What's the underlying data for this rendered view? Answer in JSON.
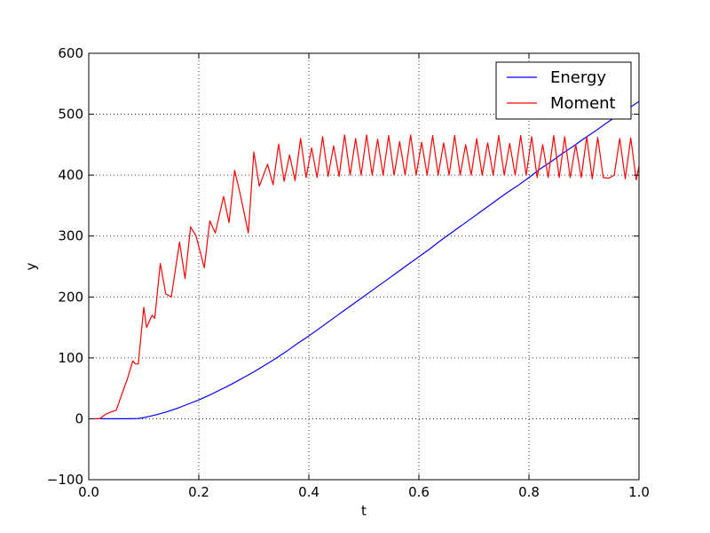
{
  "chart_data": {
    "type": "line",
    "title": "",
    "xlabel": "t",
    "ylabel": "y",
    "xlim": [
      0,
      1
    ],
    "ylim": [
      -100,
      600
    ],
    "xticks": [
      "0.0",
      "0.2",
      "0.4",
      "0.6",
      "0.8",
      "1.0"
    ],
    "yticks": [
      "−100",
      "0",
      "100",
      "200",
      "300",
      "400",
      "500",
      "600"
    ],
    "grid": true,
    "legend_position": "top-right",
    "series": [
      {
        "name": "Energy",
        "color": "#0000ff",
        "x": [
          0.01,
          0.03,
          0.05,
          0.07,
          0.09,
          0.1,
          0.12,
          0.14,
          0.16,
          0.18,
          0.2,
          0.22,
          0.24,
          0.26,
          0.28,
          0.3,
          0.32,
          0.34,
          0.36,
          0.38,
          0.4,
          0.42,
          0.44,
          0.46,
          0.48,
          0.5,
          0.52,
          0.54,
          0.56,
          0.58,
          0.6,
          0.62,
          0.64,
          0.66,
          0.68,
          0.7,
          0.72,
          0.74,
          0.76,
          0.78,
          0.8,
          0.82,
          0.84,
          0.86,
          0.88,
          0.9,
          0.92,
          0.94,
          0.96,
          0.98,
          1.0
        ],
        "y": [
          0,
          0,
          0,
          0,
          0.5,
          2,
          6,
          11,
          17,
          24,
          31,
          39,
          48,
          57,
          67,
          77,
          88,
          99,
          111,
          124,
          136,
          149,
          162,
          175,
          188,
          201,
          214,
          227,
          240,
          253,
          266,
          279,
          293,
          306,
          319,
          332,
          345,
          358,
          371,
          383,
          396,
          410,
          422,
          435,
          447,
          460,
          472,
          485,
          497,
          509,
          521
        ]
      },
      {
        "name": "Moment",
        "color": "#ff0000",
        "x": [
          0.01,
          0.02,
          0.03,
          0.04,
          0.05,
          0.06,
          0.07,
          0.08,
          0.085,
          0.09,
          0.1,
          0.105,
          0.115,
          0.12,
          0.13,
          0.14,
          0.15,
          0.165,
          0.175,
          0.185,
          0.195,
          0.21,
          0.22,
          0.23,
          0.245,
          0.255,
          0.265,
          0.275,
          0.29,
          0.3,
          0.31,
          0.325,
          0.335,
          0.345,
          0.355,
          0.365,
          0.375,
          0.385,
          0.395,
          0.405,
          0.415,
          0.425,
          0.435,
          0.445,
          0.455,
          0.465,
          0.475,
          0.485,
          0.495,
          0.505,
          0.515,
          0.525,
          0.535,
          0.545,
          0.555,
          0.565,
          0.575,
          0.585,
          0.595,
          0.605,
          0.615,
          0.625,
          0.635,
          0.645,
          0.655,
          0.665,
          0.675,
          0.685,
          0.695,
          0.705,
          0.715,
          0.725,
          0.735,
          0.745,
          0.755,
          0.765,
          0.775,
          0.785,
          0.795,
          0.805,
          0.815,
          0.825,
          0.835,
          0.845,
          0.855,
          0.865,
          0.875,
          0.885,
          0.895,
          0.905,
          0.915,
          0.925,
          0.935,
          0.945,
          0.955,
          0.965,
          0.975,
          0.985,
          0.995,
          1.0
        ],
        "y": [
          0,
          0,
          7,
          11,
          14,
          40,
          65,
          95,
          90,
          90,
          183,
          150,
          170,
          165,
          255,
          205,
          200,
          290,
          230,
          315,
          300,
          248,
          325,
          305,
          365,
          322,
          408,
          370,
          305,
          438,
          382,
          418,
          384,
          451,
          390,
          433,
          391,
          460,
          396,
          445,
          396,
          463,
          398,
          448,
          398,
          466,
          400,
          460,
          400,
          466,
          400,
          459,
          400,
          465,
          400,
          455,
          400,
          466,
          400,
          454,
          400,
          465,
          400,
          453,
          400,
          465,
          400,
          450,
          400,
          460,
          400,
          453,
          400,
          465,
          400,
          452,
          400,
          465,
          400,
          463,
          396,
          450,
          396,
          465,
          396,
          463,
          396,
          450,
          396,
          463,
          394,
          462,
          396,
          395,
          400,
          460,
          394,
          461,
          392,
          415
        ]
      }
    ]
  }
}
